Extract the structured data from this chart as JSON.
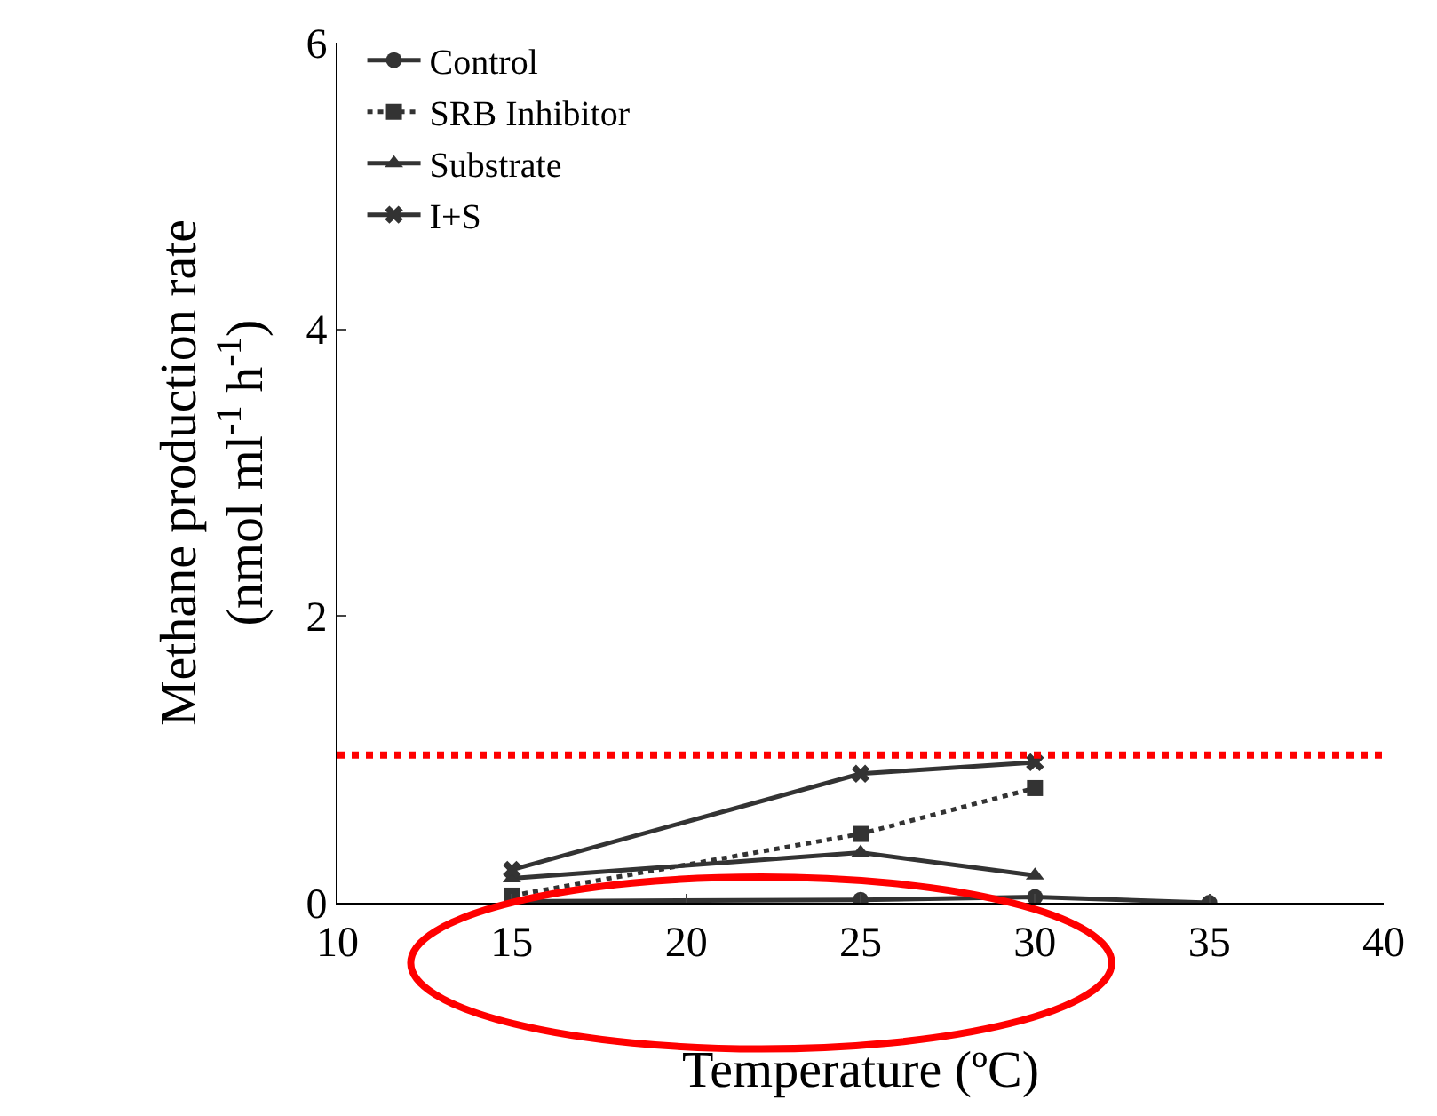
{
  "chart_data": {
    "type": "line",
    "xlabel": "Temperature (ºC)",
    "ylabel": "Methane production rate\n(nmol ml$^{-1}$ h$^{-1}$)",
    "xlim": [
      10,
      40
    ],
    "xticks": [
      10,
      15,
      20,
      25,
      30,
      35,
      40
    ],
    "ylim": [
      0,
      6
    ],
    "yticks": [
      0,
      2,
      4,
      6
    ],
    "legend": "top left",
    "series": [
      {
        "name": "Control",
        "color": "#333333",
        "marker": "circle",
        "line_style": "solid",
        "x": [
          15,
          25,
          30,
          35
        ],
        "values": [
          0.01,
          0.02,
          0.04,
          0.0
        ]
      },
      {
        "name": "SRB Inhibitor",
        "color": "#333333",
        "marker": "square",
        "line_style": "dotted",
        "x": [
          15,
          25,
          30
        ],
        "values": [
          0.05,
          0.48,
          0.8
        ]
      },
      {
        "name": "Substrate",
        "color": "#333333",
        "marker": "triangle",
        "line_style": "solid",
        "x": [
          15,
          25,
          30
        ],
        "values": [
          0.17,
          0.35,
          0.19
        ]
      },
      {
        "name": "I+S",
        "color": "#333333",
        "marker": "cross",
        "line_style": "solid",
        "x": [
          15,
          25,
          30
        ],
        "values": [
          0.23,
          0.9,
          0.98
        ]
      }
    ],
    "ref_lines": [
      {
        "axis": "y",
        "value": 1.03,
        "color": "#ff0000",
        "line_style": "dotted"
      }
    ]
  }
}
